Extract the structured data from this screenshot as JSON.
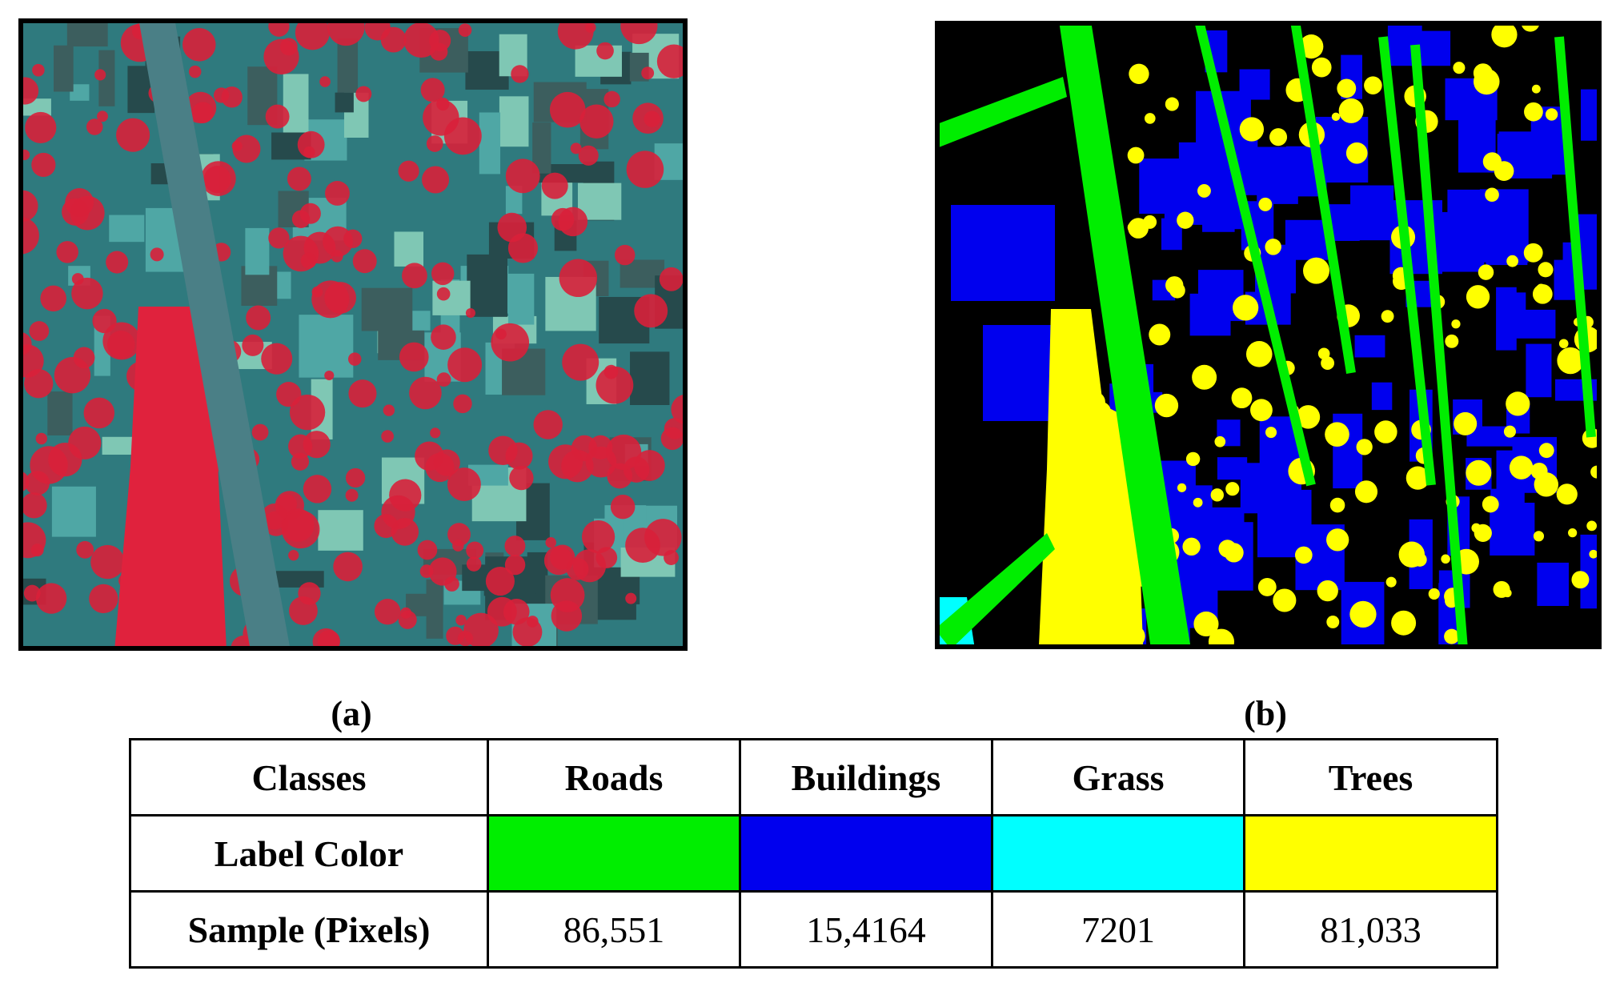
{
  "figure": {
    "panel_a_label": "(a)",
    "panel_b_label": "(b)"
  },
  "table": {
    "header": [
      "Classes",
      "Roads",
      "Buildings",
      "Grass",
      "Trees"
    ],
    "rows": [
      [
        "Label Color"
      ],
      [
        "Sample (Pixels)",
        "86,551",
        "15,4164",
        "7201",
        "81,033"
      ]
    ],
    "label_colors": [
      "#00ee00",
      "#0000ee",
      "#00ffff",
      "#ffff00"
    ]
  }
}
